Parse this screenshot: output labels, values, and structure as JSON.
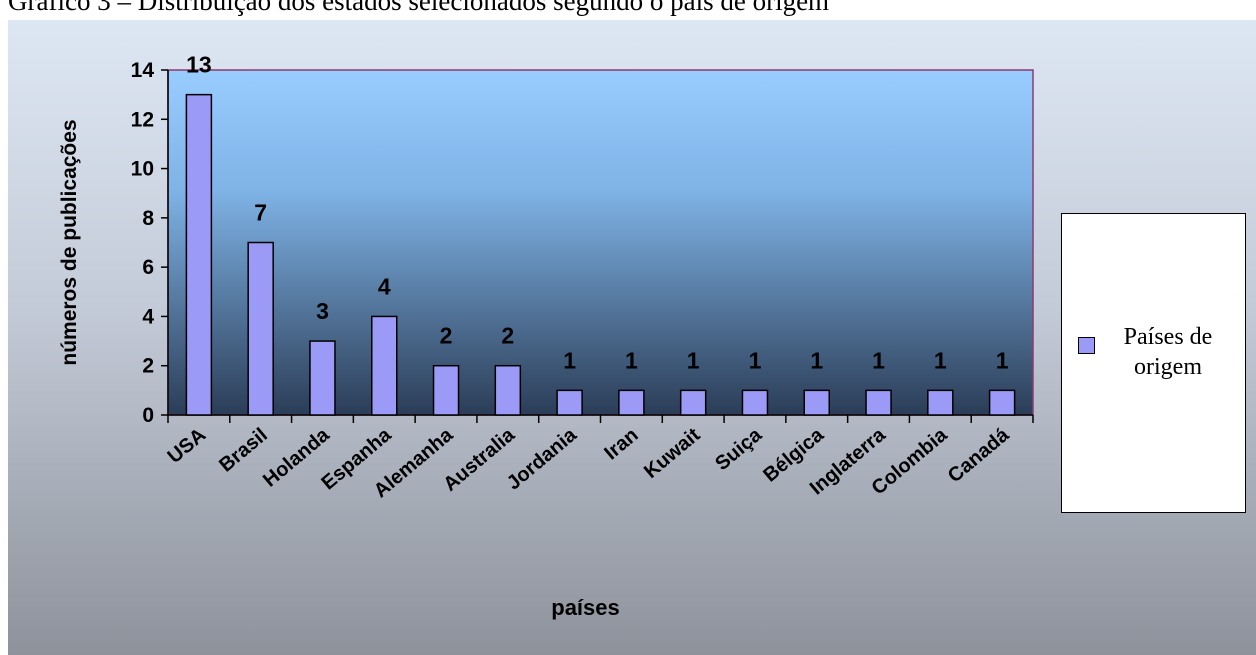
{
  "caption": "Gráfico 3 – Distribuição dos estados selecionados segundo o país de origem",
  "chart_data": {
    "type": "bar",
    "categories": [
      "USA",
      "Brasil",
      "Holanda",
      "Espanha",
      "Alemanha",
      "Australia",
      "Jordania",
      "Iran",
      "Kuwait",
      "Suiça",
      "Bélgica",
      "Inglaterra",
      "Colombia",
      "Canadá"
    ],
    "series": [
      {
        "name": "Países de origem",
        "values": [
          13,
          7,
          3,
          4,
          2,
          2,
          1,
          1,
          1,
          1,
          1,
          1,
          1,
          1
        ]
      }
    ],
    "xlabel": "países",
    "ylabel": "números de publicações",
    "ylim": [
      0,
      14
    ],
    "yticks": [
      0,
      2,
      4,
      6,
      8,
      10,
      12,
      14
    ],
    "data_labels": true,
    "grid": false,
    "legend_position": "right",
    "colors": {
      "bar_fill": "#9b9bf7",
      "bar_stroke": "#000000",
      "plot_border": "#8e3a6e",
      "plot_bg_top": "#99ccff",
      "plot_bg_bottom": "#2b3d57"
    }
  }
}
